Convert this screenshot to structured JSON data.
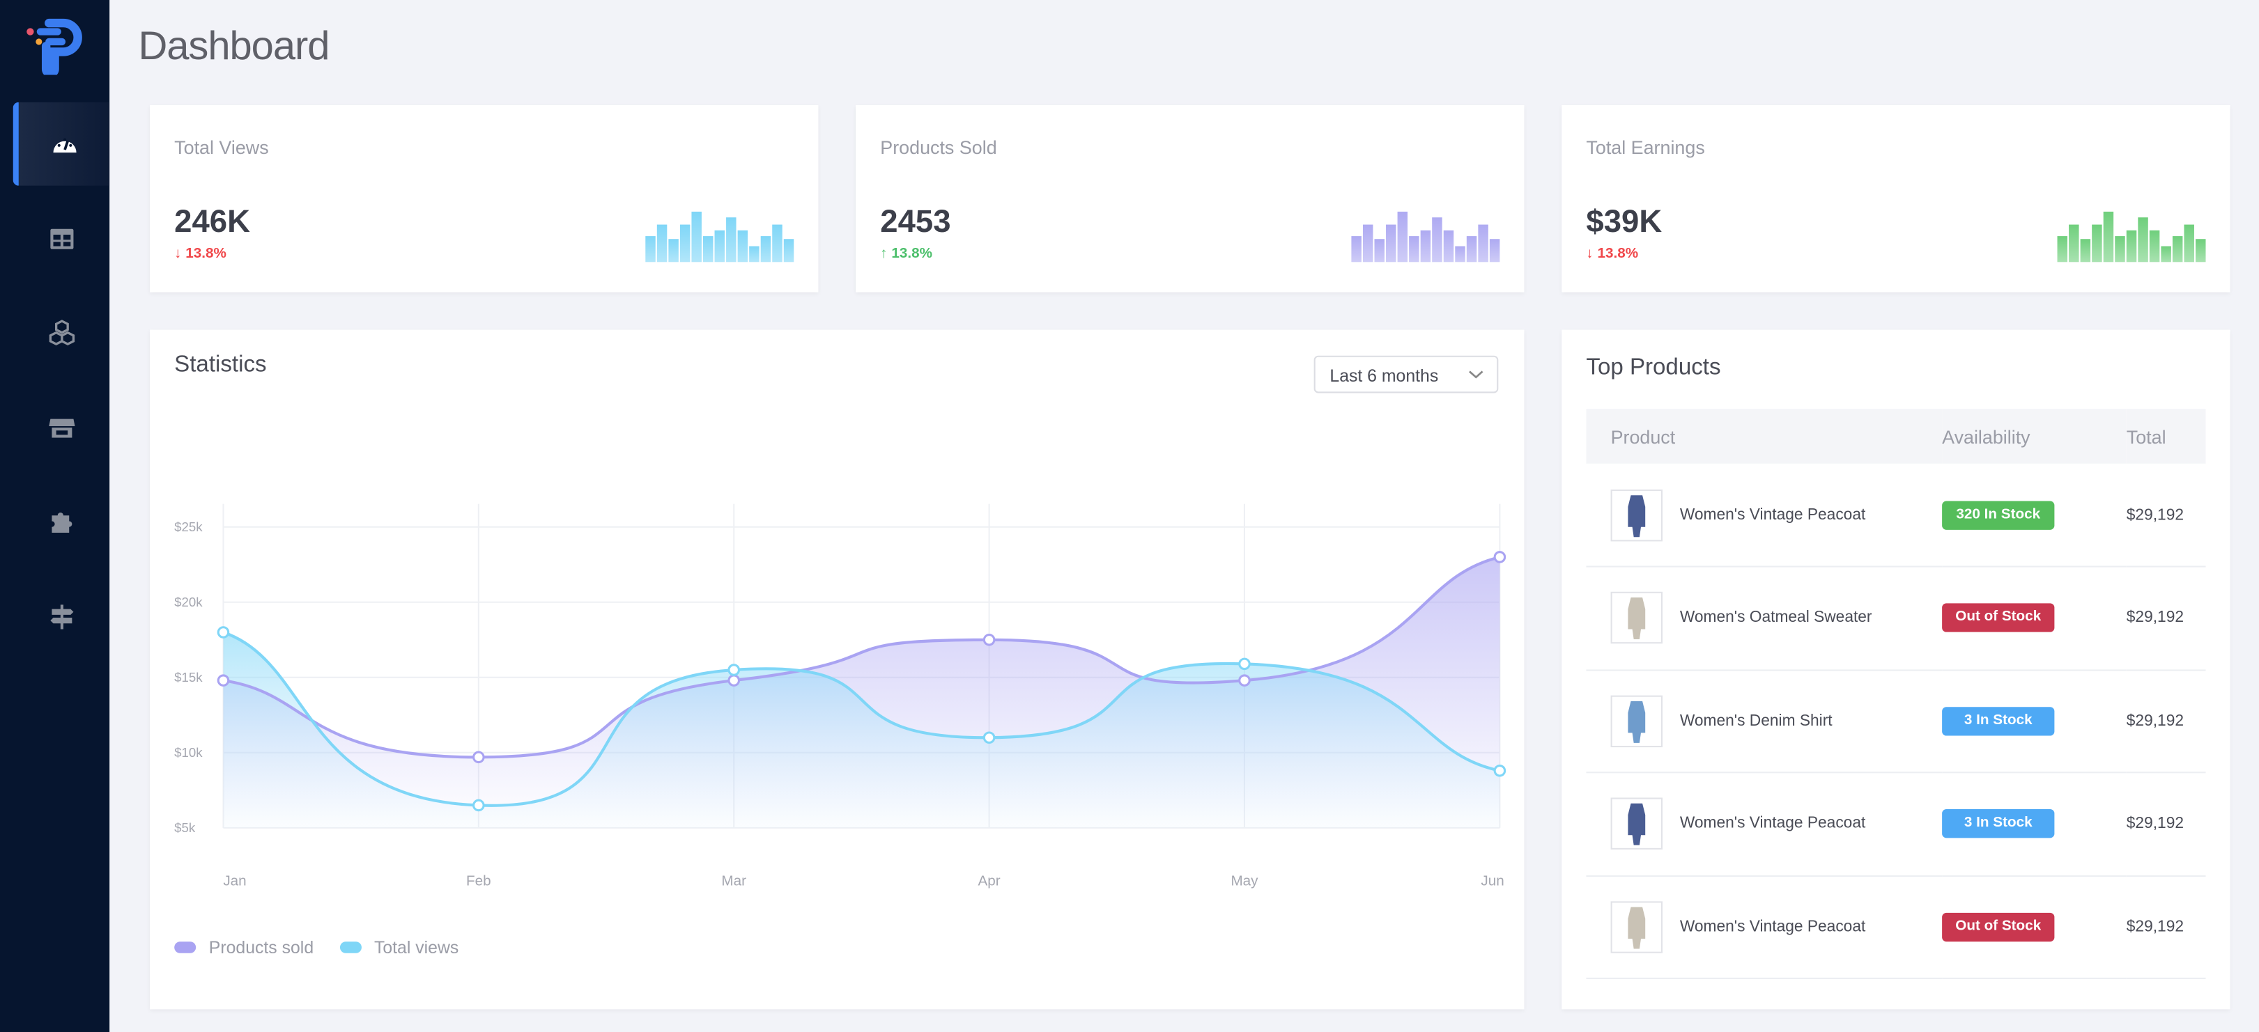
{
  "header": {
    "title": "Dashboard"
  },
  "sidebar": {
    "items": [
      {
        "icon": "dashboard-gauge-icon",
        "active": true
      },
      {
        "icon": "table-icon"
      },
      {
        "icon": "cubes-icon"
      },
      {
        "icon": "store-icon"
      },
      {
        "icon": "puzzle-icon"
      },
      {
        "icon": "signpost-icon"
      }
    ]
  },
  "stats": [
    {
      "label": "Total Views",
      "value": "246K",
      "change": "13.8%",
      "direction": "down",
      "color": "#7fd6f7",
      "spark": [
        108,
        160,
        97,
        160,
        214,
        108,
        134,
        188,
        134,
        70,
        108,
        160,
        97
      ]
    },
    {
      "label": "Products Sold",
      "value": "2453",
      "change": "13.8%",
      "direction": "up",
      "color": "#aeaaf2",
      "spark": [
        108,
        160,
        97,
        160,
        214,
        108,
        134,
        188,
        134,
        70,
        108,
        160,
        97
      ]
    },
    {
      "label": "Total Earnings",
      "value": "$39K",
      "change": "13.8%",
      "direction": "down",
      "color": "#6fcf7c",
      "spark": [
        108,
        160,
        97,
        160,
        214,
        108,
        134,
        188,
        134,
        70,
        108,
        160,
        97
      ]
    }
  ],
  "colors": {
    "down": "#f0474a",
    "up": "#4cbf6b",
    "products_sold": "#a9a3f2",
    "total_views": "#7fd6f7"
  },
  "statistics": {
    "title": "Statistics",
    "range": "Last 6 months"
  },
  "chart_data": {
    "type": "area",
    "categories": [
      "Jan",
      "Feb",
      "Mar",
      "Apr",
      "May",
      "Jun"
    ],
    "yticks": [
      "$5k",
      "$10k",
      "$15k",
      "$20k",
      "$25k"
    ],
    "ylim": [
      5,
      25
    ],
    "grid": true,
    "legend": "bottom-left",
    "series": [
      {
        "name": "Products sold",
        "values": [
          14.8,
          9.7,
          14.8,
          17.5,
          14.8,
          23
        ]
      },
      {
        "name": "Total views",
        "values": [
          18,
          6.5,
          15.5,
          11,
          15.9,
          8.8
        ]
      }
    ]
  },
  "top_products": {
    "title": "Top Products",
    "columns": [
      "Product",
      "Availability",
      "Total"
    ],
    "rows": [
      {
        "name": "Women's Vintage Peacoat",
        "availability": "320 In Stock",
        "status": "green",
        "total": "$29,192",
        "img": "coat"
      },
      {
        "name": "Women's Oatmeal Sweater",
        "availability": "Out of Stock",
        "status": "red",
        "total": "$29,192",
        "img": "sweater"
      },
      {
        "name": "Women's Denim Shirt",
        "availability": "3 In Stock",
        "status": "blue",
        "total": "$29,192",
        "img": "denim"
      },
      {
        "name": "Women's Vintage Peacoat",
        "availability": "3 In Stock",
        "status": "blue",
        "total": "$29,192",
        "img": "coat"
      },
      {
        "name": "Women's Vintage Peacoat",
        "availability": "Out of Stock",
        "status": "red",
        "total": "$29,192",
        "img": "sweater"
      }
    ]
  },
  "badge_colors": {
    "green": "#55bd5b",
    "red": "#c9374f",
    "blue": "#4ea9f5"
  }
}
